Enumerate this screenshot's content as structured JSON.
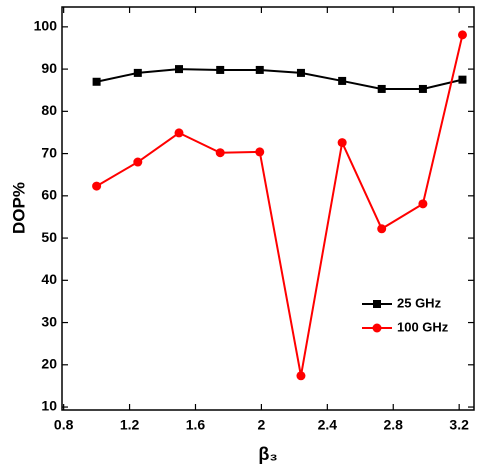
{
  "chart_data": {
    "type": "line",
    "xlabel": "β₃",
    "ylabel": "DOP%",
    "x": [
      1.0,
      1.25,
      1.5,
      1.75,
      1.99,
      2.24,
      2.49,
      2.73,
      2.98,
      3.22
    ],
    "series": [
      {
        "name": "25 GHz",
        "color": "#000000",
        "marker": "square",
        "values": [
          87.0,
          89.1,
          90.0,
          89.8,
          89.8,
          89.1,
          87.2,
          85.3,
          85.3,
          87.5
        ]
      },
      {
        "name": "100 GHz",
        "color": "#ff0000",
        "marker": "circle",
        "values": [
          62.3,
          68.0,
          74.9,
          70.2,
          70.4,
          17.4,
          72.6,
          52.2,
          58.1,
          98.1
        ]
      }
    ],
    "xlim": [
      0.79,
      3.29
    ],
    "ylim": [
      9.3,
      104.7
    ],
    "xticks": [
      0.8,
      1.2,
      1.6,
      2.0,
      2.4,
      2.8,
      3.2
    ],
    "yticks": [
      10,
      20,
      30,
      40,
      50,
      60,
      70,
      80,
      90,
      100
    ],
    "legend": "right"
  }
}
